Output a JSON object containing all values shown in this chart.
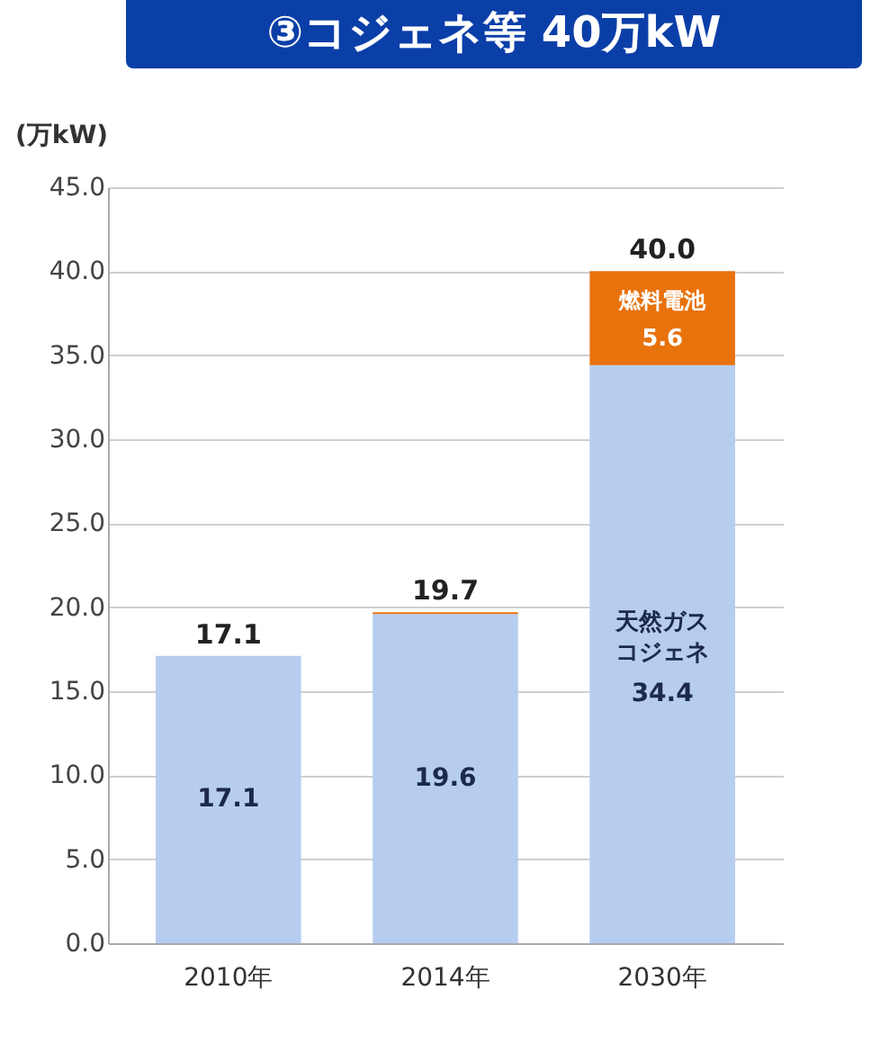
{
  "chart_data": {
    "type": "bar",
    "title": "③コジェネ等 40万kW",
    "ylabel": "(万kW)",
    "categories": [
      "2010年",
      "2014年",
      "2030年"
    ],
    "stacked": true,
    "series": [
      {
        "name": "天然ガスコジェネ",
        "color": "#b7cdf0",
        "values": [
          17.1,
          19.6,
          34.4
        ],
        "value_labels": [
          "17.1",
          "19.6",
          "34.4"
        ]
      },
      {
        "name": "燃料電池",
        "color": "#e8720c",
        "values": [
          0,
          0.1,
          5.6
        ],
        "value_labels": [
          null,
          null,
          "5.6"
        ]
      }
    ],
    "totals": [
      "17.1",
      "19.7",
      "40.0"
    ],
    "ylim": [
      0,
      45
    ],
    "yticks": [
      {
        "value": 0,
        "label": "0.0"
      },
      {
        "value": 5,
        "label": "5.0"
      },
      {
        "value": 10,
        "label": "10.0"
      },
      {
        "value": 15,
        "label": "15.0"
      },
      {
        "value": 20,
        "label": "20.0"
      },
      {
        "value": 25,
        "label": "25.0"
      },
      {
        "value": 30,
        "label": "30.0"
      },
      {
        "value": 35,
        "label": "35.0"
      },
      {
        "value": 40,
        "label": "40.0"
      },
      {
        "value": 45,
        "label": "45.0"
      }
    ],
    "grid": "y",
    "legend": false
  }
}
